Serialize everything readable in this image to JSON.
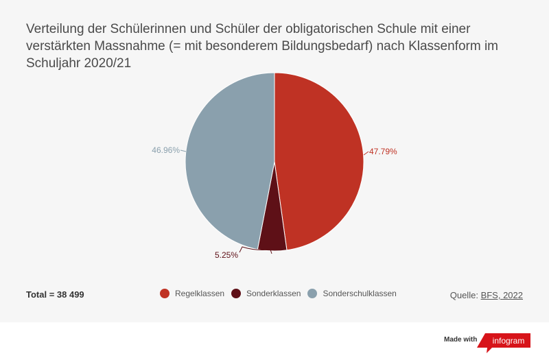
{
  "chart_data": {
    "type": "pie",
    "title": "Verteilung der Schülerinnen und Schüler der obligatorischen Schule mit einer verstärkten Massnahme (= mit besonderem Bildungsbedarf) nach Klassenform im Schuljahr 2020/21",
    "categories": [
      "Regelklassen",
      "Sonderklassen",
      "Sonderschulklassen"
    ],
    "values": [
      47.79,
      5.25,
      46.96
    ],
    "labels": [
      "47.79%",
      "5.25%",
      "46.96%"
    ],
    "colors": [
      "#bf3224",
      "#5e1017",
      "#8aa0ad"
    ],
    "legend_position": "bottom"
  },
  "footer": {
    "total": "Total = 38 499",
    "source_prefix": "Quelle:",
    "source_link": "BFS, 2022"
  },
  "branding": {
    "made_with": "Made with",
    "brand": "infogram",
    "brand_color": "#d7141a"
  }
}
